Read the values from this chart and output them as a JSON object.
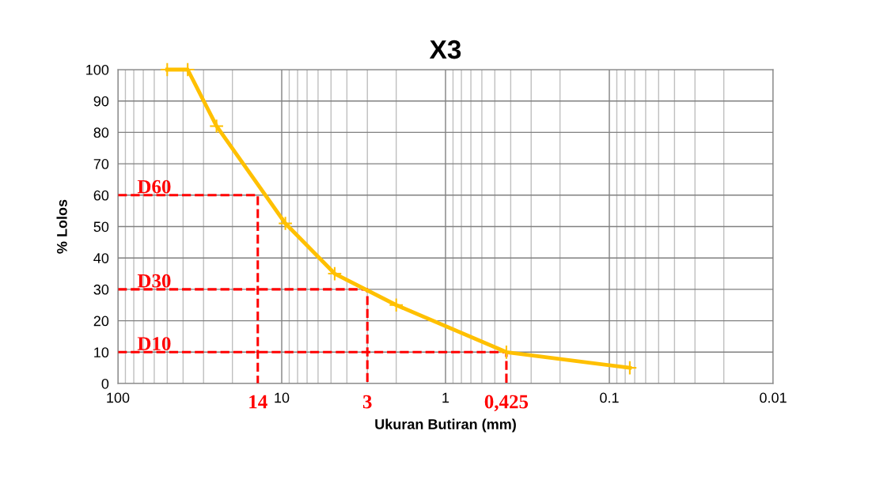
{
  "chart_data": {
    "type": "line",
    "title": "X3",
    "xlabel": "Ukuran Butiran (mm)",
    "ylabel": "% Lolos",
    "log": "x",
    "xlim": [
      100,
      0.01
    ],
    "xticks": [
      100,
      10,
      1,
      0.1,
      0.01
    ],
    "ylim": [
      0,
      100
    ],
    "yticks": [
      0,
      10,
      20,
      30,
      40,
      50,
      60,
      70,
      80,
      90,
      100
    ],
    "grid": true,
    "legend": false,
    "series": [
      {
        "color": "#ffc000",
        "marker": "cross",
        "line_style": "solid",
        "x": [
          50,
          37.5,
          25,
          9.5,
          4.75,
          2,
          0.425,
          0.075
        ],
        "values": [
          100,
          100,
          82,
          51,
          35,
          25,
          10,
          5
        ]
      },
      {
        "color": "#ff0000",
        "marker": "none",
        "line_style": "dashed",
        "x": [
          100,
          14,
          14
        ],
        "values": [
          60,
          60,
          0
        ]
      },
      {
        "color": "#ff0000",
        "marker": "none",
        "line_style": "dashed",
        "x": [
          100,
          3,
          3
        ],
        "values": [
          30,
          30,
          0
        ]
      },
      {
        "color": "#ff0000",
        "marker": "none",
        "line_style": "dashed",
        "x": [
          100,
          0.425,
          0.425
        ],
        "values": [
          10,
          10,
          0
        ]
      }
    ],
    "annotations": [
      {
        "text": "D60",
        "x": 60,
        "y": 60
      },
      {
        "text": "D30",
        "x": 60,
        "y": 30
      },
      {
        "text": "D10",
        "x": 60,
        "y": 10
      },
      {
        "text": "14",
        "x": 14,
        "y": 0
      },
      {
        "text": "3",
        "x": 3,
        "y": 0
      },
      {
        "text": "0,425",
        "x": 0.425,
        "y": 0
      }
    ]
  }
}
